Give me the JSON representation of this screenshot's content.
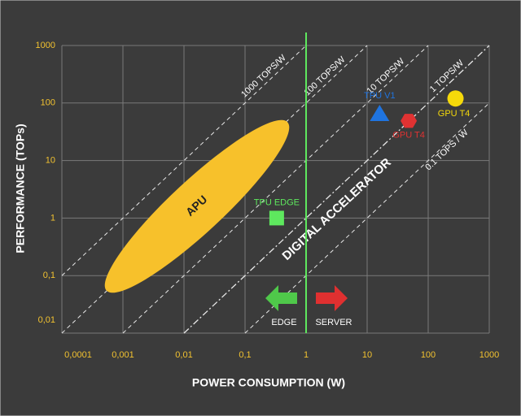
{
  "chart_data": {
    "type": "scatter",
    "xlabel": "POWER CONSUMPTION (W)",
    "ylabel": "PERFORMANCE (TOPs)",
    "log_x": true,
    "log_y": true,
    "grid": true,
    "xlim": [
      0.0001,
      1000
    ],
    "ylim": [
      0.01,
      1000
    ],
    "xticks": [
      {
        "value": 0.0001,
        "label": "0,0001"
      },
      {
        "value": 0.001,
        "label": "0,001"
      },
      {
        "value": 0.01,
        "label": "0,01"
      },
      {
        "value": 0.1,
        "label": "0,1"
      },
      1,
      10,
      100,
      1000
    ],
    "yticks": [
      {
        "value": 0.01,
        "label": "0,01"
      },
      {
        "value": 0.1,
        "label": "0,1"
      },
      1,
      10,
      100,
      1000
    ],
    "points": [
      {
        "name": "TPU V1",
        "x": 16,
        "y": 65,
        "color": "#1f74e0",
        "marker": "triangle"
      },
      {
        "name": "GPU T4",
        "x": 280,
        "y": 120,
        "color": "#f5d90a",
        "marker": "circle"
      },
      {
        "name": "GPU T4",
        "x": 48,
        "y": 49,
        "color": "#e03232",
        "marker": "hexagon"
      },
      {
        "name": "TPU EDGE",
        "x": 0.33,
        "y": 1,
        "color": "#5ee85e",
        "marker": "square"
      }
    ],
    "efficiency_lines": [
      {
        "value": 1000,
        "label": "1000 TOPS/W",
        "style": "dashed"
      },
      {
        "value": 100,
        "label": "100 TOPS/W",
        "style": "dashed"
      },
      {
        "value": 10,
        "label": "10 TOPS/W",
        "style": "dashed"
      },
      {
        "value": 1,
        "label": "1 TOPS/W",
        "style": "dashdot"
      },
      {
        "value": 0.1,
        "label": "0.1 TOPS / W",
        "style": "dashed"
      }
    ],
    "divider": {
      "x": 1,
      "color": "#5ee85e"
    },
    "annotations": {
      "apu": "APU",
      "digital": "DIGITAL ACCELERATOR",
      "edge": "EDGE",
      "server": "SERVER"
    }
  }
}
